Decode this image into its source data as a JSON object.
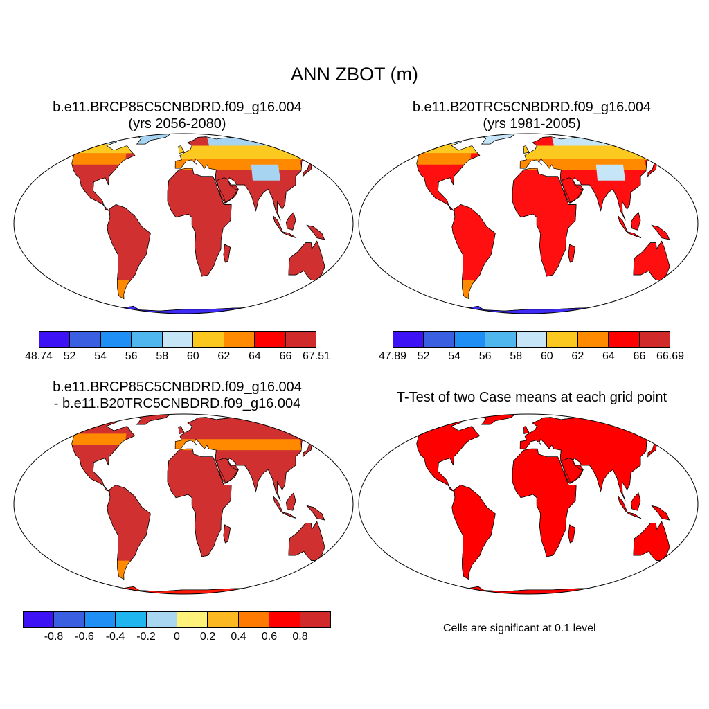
{
  "title": "ANN ZBOT (m)",
  "colors": {
    "ocean": "#ffffff",
    "outline": "#000000"
  },
  "panels": [
    {
      "id": "case1",
      "title_line1": "b.e11.BRCP85C5CNBDRD.f09_g16.004",
      "title_line2": "(yrs 2056-2080)",
      "fills": {
        "default": "#d03030",
        "polar": "#a7d4f0",
        "antarctic": "#3d2af5",
        "mid": "#fbc920",
        "warm": "#ff8a00",
        "hot": "#ff0000"
      },
      "colorbar": {
        "colors": [
          "#3d12f5",
          "#3a5fe0",
          "#1f8ff5",
          "#4fb7ee",
          "#c6e6f8",
          "#fbc81f",
          "#ff8a00",
          "#ff0000",
          "#d02a2a"
        ],
        "labels": [
          "48.74",
          "52",
          "54",
          "56",
          "58",
          "60",
          "62",
          "64",
          "66",
          "67.51"
        ]
      }
    },
    {
      "id": "case2",
      "title_line1": "b.e11.B20TRC5CNBDRD.f09_g16.004",
      "title_line2": "(yrs 1981-2005)",
      "fills": {
        "default": "#ff0f0f",
        "polar": "#c6e6f8",
        "antarctic": "#3d2af5",
        "mid": "#fbc920",
        "warm": "#ff8a00",
        "hot": "#e83030"
      },
      "colorbar": {
        "colors": [
          "#3d12f5",
          "#3a5fe0",
          "#1f8ff5",
          "#4fb7ee",
          "#c6e6f8",
          "#fbc81f",
          "#ff8a00",
          "#ff0000",
          "#d02a2a"
        ],
        "labels": [
          "47.89",
          "52",
          "54",
          "56",
          "58",
          "60",
          "62",
          "64",
          "66",
          "66.69"
        ]
      }
    },
    {
      "id": "diff",
      "title_line1": "b.e11.BRCP85C5CNBDRD.f09_g16.004",
      "title_line2": "- b.e11.B20TRC5CNBDRD.f09_g16.004",
      "fills": {
        "default": "#d03030",
        "polar": "#d03030",
        "antarctic": "#ff1a0a",
        "mid": "#d03030",
        "warm": "#ff8a00",
        "hot": "#d03030"
      },
      "colorbar": {
        "colors": [
          "#3d12f5",
          "#3a5fe0",
          "#1f8ff5",
          "#1fb6f0",
          "#a9d7f2",
          "#fff27a",
          "#fbb820",
          "#ff7a00",
          "#ff0000",
          "#d02a2a"
        ],
        "labels": [
          "-0.8",
          "-0.6",
          "-0.4",
          "-0.2",
          "0",
          "0.2",
          "0.4",
          "0.6",
          "0.8"
        ]
      }
    },
    {
      "id": "ttest",
      "title_line1": "T-Test of two Case means at each grid point",
      "title_line2": "",
      "fills": {
        "default": "#ff0000",
        "polar": "#ff0000",
        "antarctic": "#ff0000",
        "mid": "#ff0000",
        "warm": "#ff0000",
        "hot": "#ff0000"
      },
      "note": "Cells are significant at 0.1 level"
    }
  ]
}
